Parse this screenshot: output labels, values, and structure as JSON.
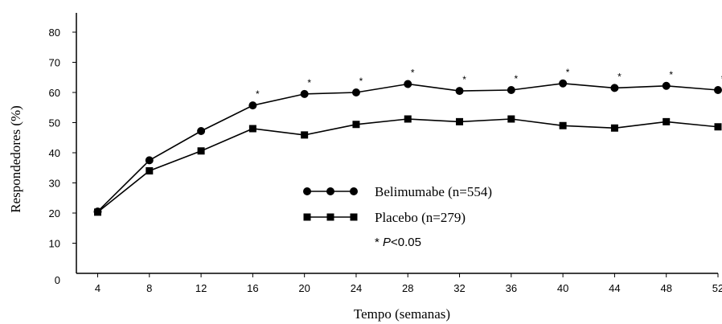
{
  "chart_data": {
    "type": "line",
    "xlabel": "Tempo (semanas)",
    "ylabel": "Respondedores (%)",
    "x": [
      4,
      8,
      12,
      16,
      20,
      24,
      28,
      32,
      36,
      40,
      44,
      48,
      52
    ],
    "x_tick_labels": [
      "4",
      "8",
      "12",
      "16",
      "20",
      "24",
      "28",
      "32",
      "36",
      "40",
      "44",
      "48",
      "52"
    ],
    "y_ticks": [
      0,
      10,
      20,
      30,
      40,
      50,
      60,
      70,
      80
    ],
    "y_tick_labels": [
      "0",
      "10",
      "20",
      "30",
      "40",
      "50",
      "60",
      "70",
      "80"
    ],
    "ylim": [
      0,
      86
    ],
    "series": [
      {
        "name": "Belimumabe (n=554)",
        "marker": "circle",
        "values": [
          20.5,
          37.5,
          47.2,
          55.7,
          59.5,
          60.0,
          62.8,
          60.5,
          60.8,
          63.0,
          61.5,
          62.2,
          60.8
        ]
      },
      {
        "name": "Placebo (n=279)",
        "marker": "square",
        "values": [
          20.3,
          34.0,
          40.6,
          48.0,
          45.9,
          49.4,
          51.2,
          50.3,
          51.2,
          49.0,
          48.2,
          50.3,
          48.6
        ]
      }
    ],
    "significance_marker": "*",
    "significant_at_x": [
      16,
      20,
      24,
      28,
      32,
      36,
      40,
      44,
      48,
      52
    ],
    "annotation": {
      "star": "* ",
      "p": "P",
      "rest": "<0.05"
    },
    "legend_position": "center",
    "grid": false,
    "color": "#000000"
  }
}
